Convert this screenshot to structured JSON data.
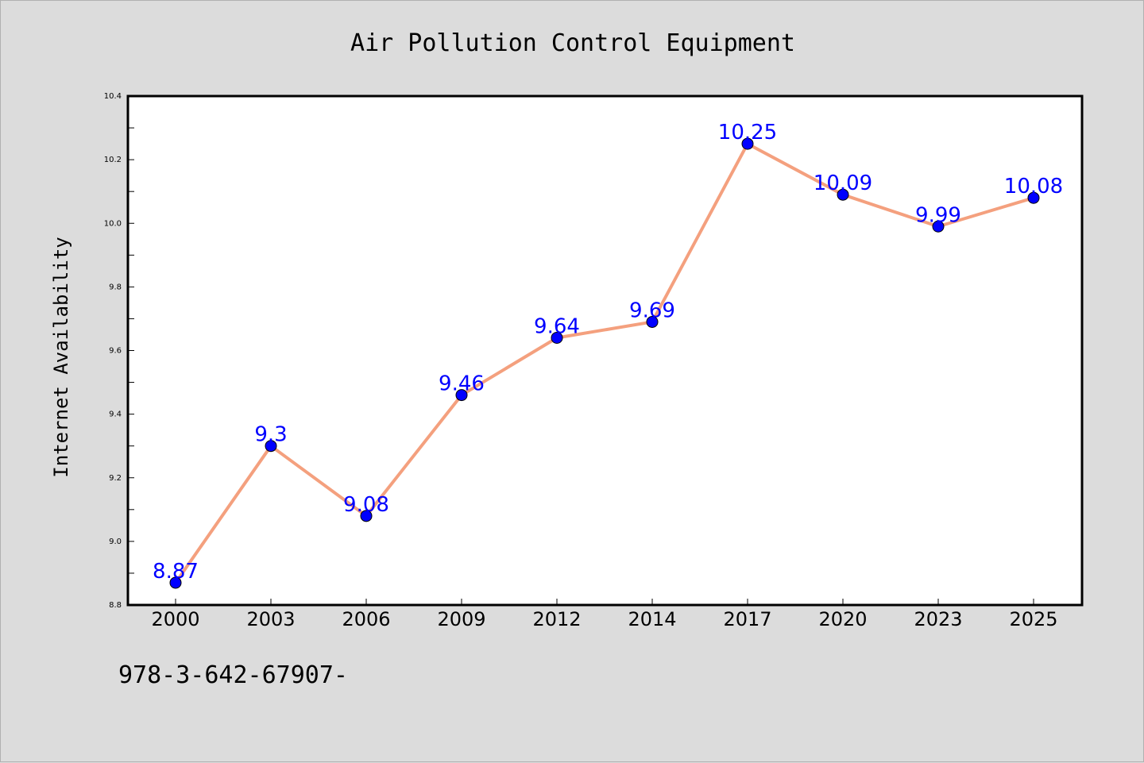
{
  "footer_text": "978-3-642-67907-",
  "colors": {
    "background": "#dcdcdc",
    "plot_background": "#ffffff",
    "line": "#f4a07e",
    "marker": "#0000ff",
    "data_label": "#0000ff",
    "text": "#000000"
  },
  "chart_data": {
    "type": "line",
    "title": "Air Pollution Control Equipment",
    "xlabel": "",
    "ylabel": "Internet Availability",
    "categories": [
      "2000",
      "2003",
      "2006",
      "2009",
      "2012",
      "2014",
      "2017",
      "2020",
      "2023",
      "2025"
    ],
    "series": [
      {
        "values": [
          8.87,
          9.3,
          9.08,
          9.46,
          9.64,
          9.69,
          10.25,
          10.09,
          9.99,
          10.08
        ],
        "data_labels": [
          "8.87",
          "9.3",
          "9.08",
          "9.46",
          "9.64",
          "9.69",
          "10.25",
          "10.09",
          "9.99",
          "10.08"
        ]
      }
    ],
    "ylim": [
      8.8,
      10.4
    ],
    "y_ticks": [
      "8.8",
      "9.0",
      "9.2",
      "9.4",
      "9.6",
      "9.8",
      "10.0",
      "10.2",
      "10.4"
    ],
    "grid": false,
    "legend": "none"
  }
}
